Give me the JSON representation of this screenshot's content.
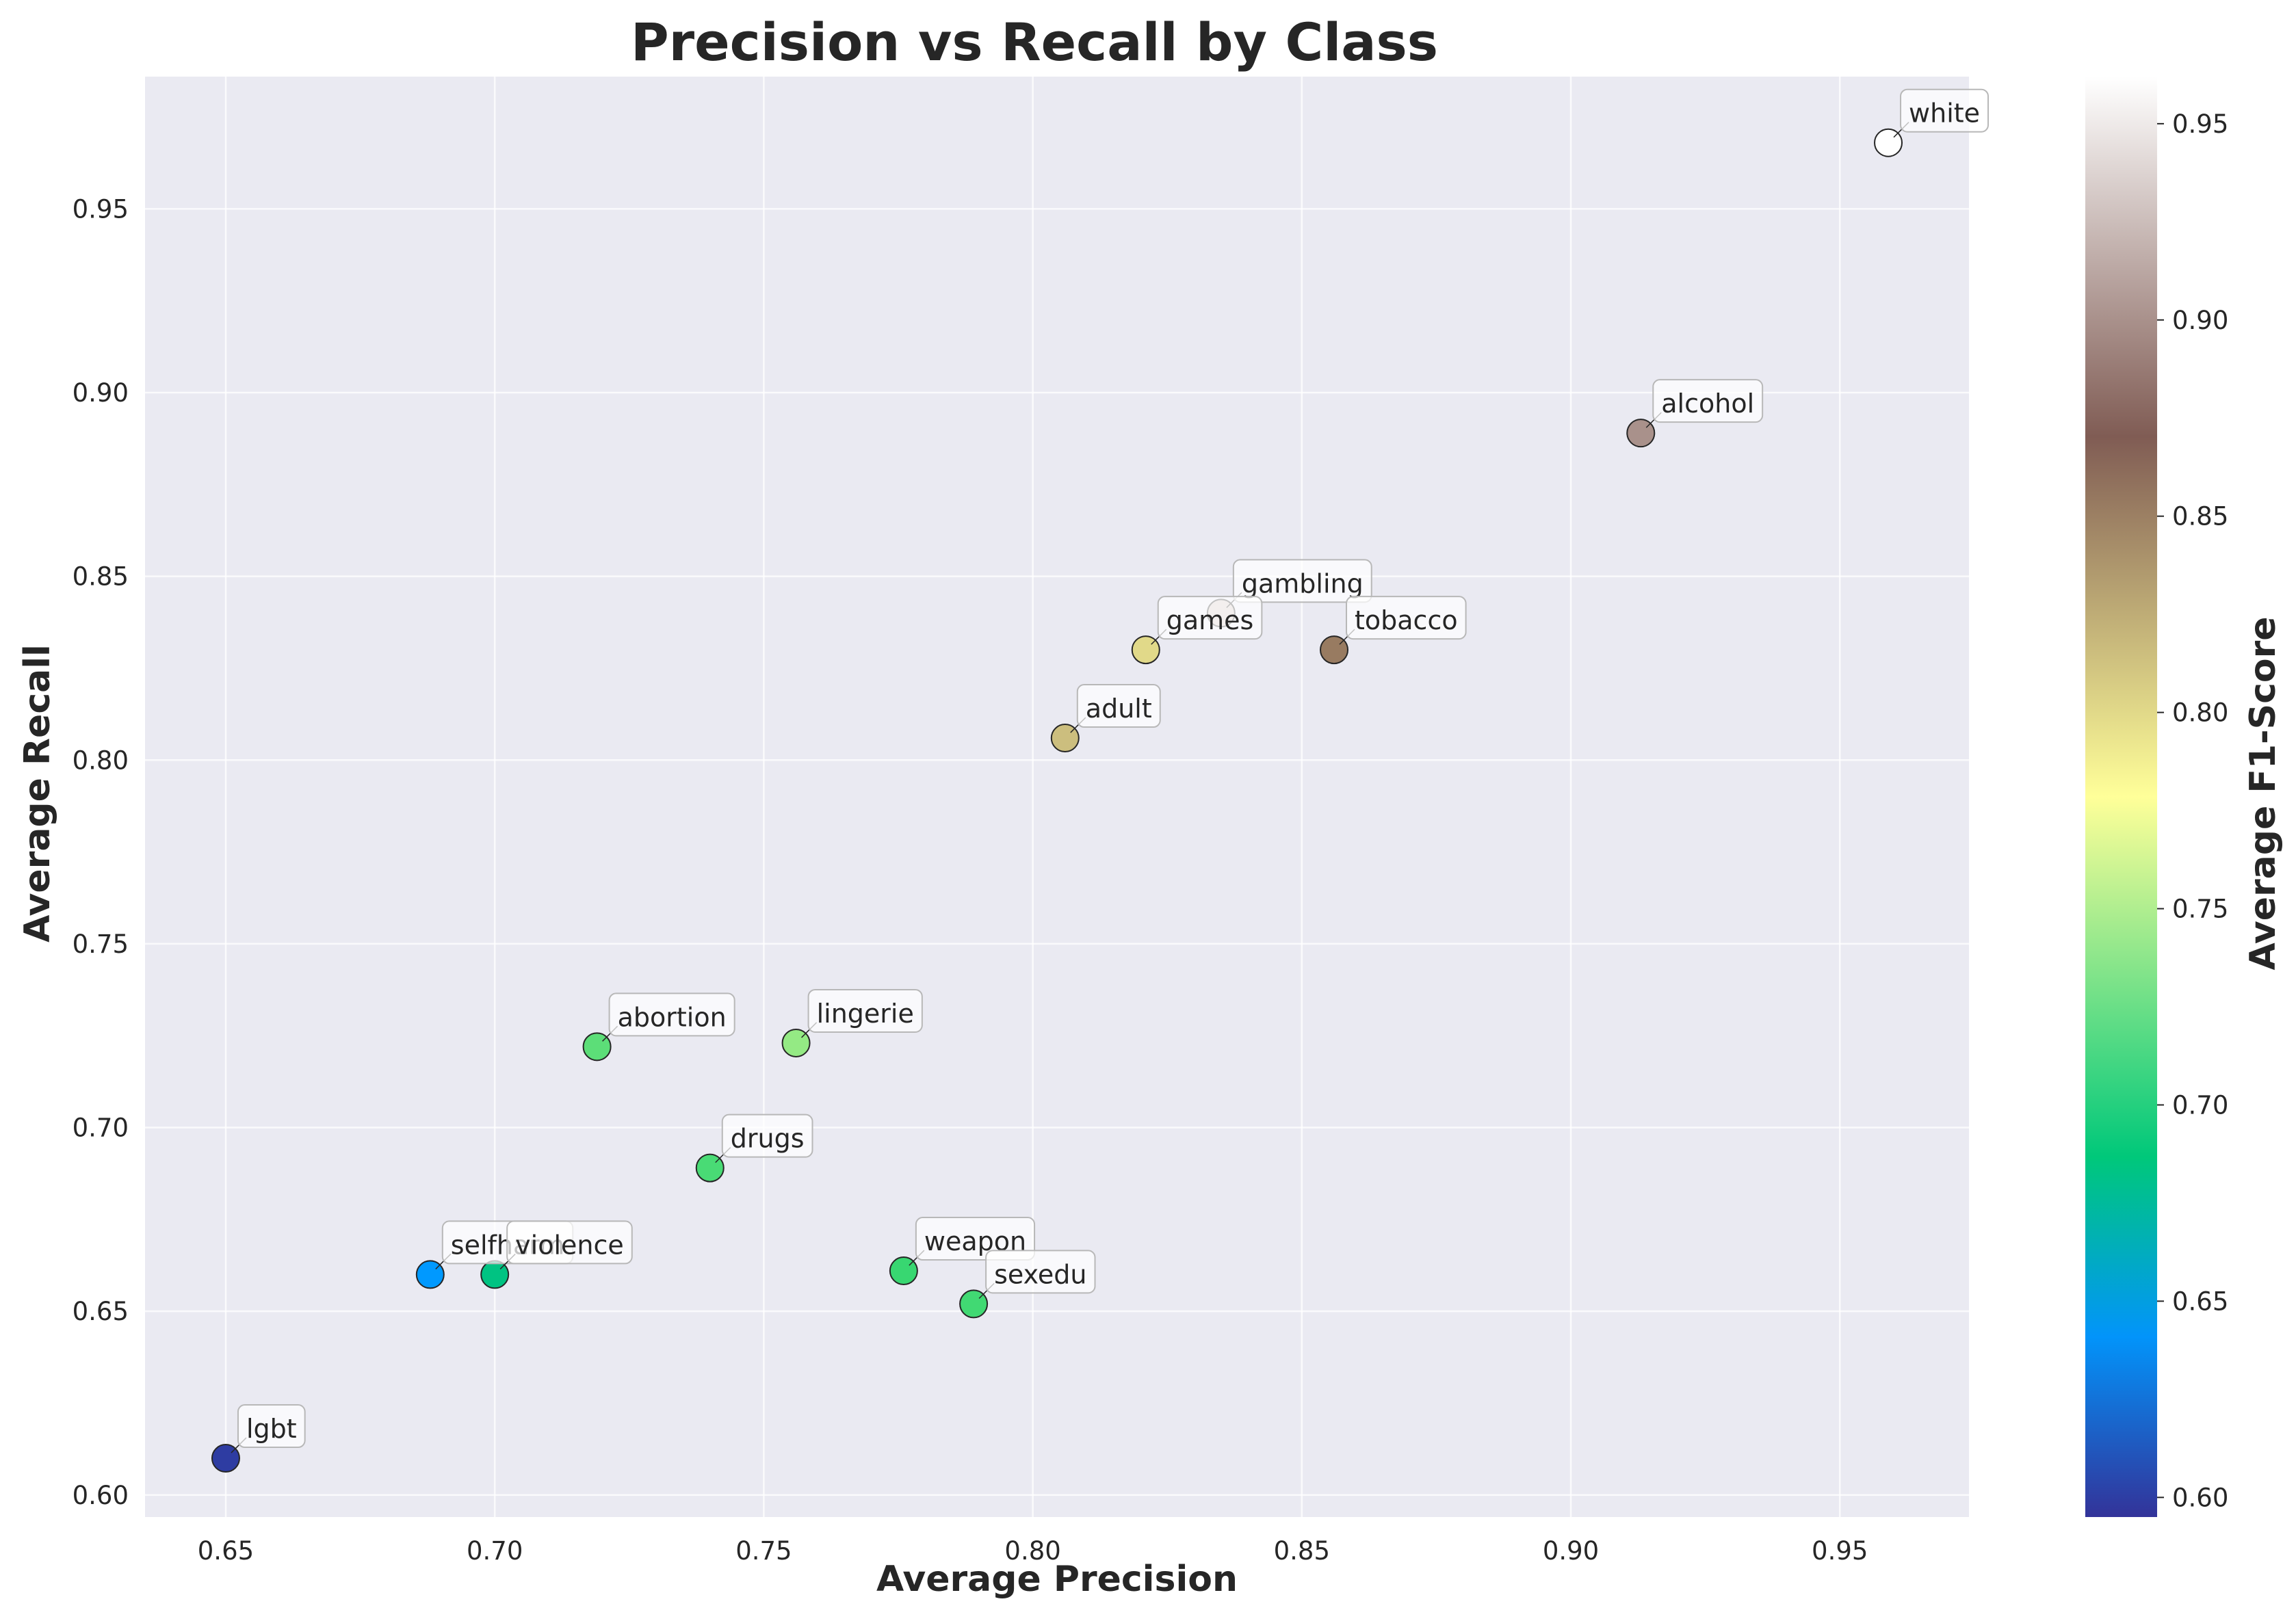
{
  "chart_data": {
    "type": "scatter",
    "title": "Precision vs Recall by Class",
    "xlabel": "Average Precision",
    "ylabel": "Average Recall",
    "xlim": [
      0.635,
      0.974
    ],
    "ylim": [
      0.594,
      0.986
    ],
    "xticks": [
      "0.65",
      "0.70",
      "0.75",
      "0.80",
      "0.85",
      "0.90",
      "0.95"
    ],
    "yticks": [
      "0.60",
      "0.65",
      "0.70",
      "0.75",
      "0.80",
      "0.85",
      "0.90",
      "0.95"
    ],
    "grid": true,
    "colorbar": {
      "label": "Average F1-Score",
      "range": [
        0.595,
        0.962
      ],
      "ticks": [
        "0.60",
        "0.65",
        "0.70",
        "0.75",
        "0.80",
        "0.85",
        "0.90",
        "0.95"
      ],
      "colormap": "terrain"
    },
    "points": [
      {
        "label": "white",
        "x": 0.959,
        "y": 0.968,
        "f1": 0.962
      },
      {
        "label": "alcohol",
        "x": 0.913,
        "y": 0.889,
        "f1": 0.9
      },
      {
        "label": "gambling",
        "x": 0.835,
        "y": 0.84,
        "f1": 0.93
      },
      {
        "label": "games",
        "x": 0.821,
        "y": 0.83,
        "f1": 0.8
      },
      {
        "label": "tobacco",
        "x": 0.856,
        "y": 0.83,
        "f1": 0.853
      },
      {
        "label": "adult",
        "x": 0.806,
        "y": 0.806,
        "f1": 0.815
      },
      {
        "label": "abortion",
        "x": 0.719,
        "y": 0.722,
        "f1": 0.72
      },
      {
        "label": "lingerie",
        "x": 0.756,
        "y": 0.723,
        "f1": 0.74
      },
      {
        "label": "drugs",
        "x": 0.74,
        "y": 0.689,
        "f1": 0.713
      },
      {
        "label": "weapon",
        "x": 0.776,
        "y": 0.661,
        "f1": 0.707
      },
      {
        "label": "sexedu",
        "x": 0.789,
        "y": 0.652,
        "f1": 0.71
      },
      {
        "label": "selfharm",
        "x": 0.688,
        "y": 0.66,
        "f1": 0.65
      },
      {
        "label": "violence",
        "x": 0.7,
        "y": 0.66,
        "f1": 0.68
      },
      {
        "label": "lgbt",
        "x": 0.65,
        "y": 0.61,
        "f1": 0.6
      }
    ]
  }
}
